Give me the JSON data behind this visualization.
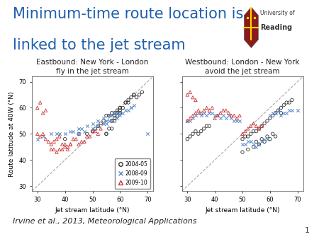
{
  "title_line1": "Minimum-time route location is",
  "title_line2": "linked to the jet stream",
  "title_color": "#1F5FAD",
  "title_fontsize": 15,
  "left_subtitle": "Eastbound: New York - London\nfly in the jet stream",
  "right_subtitle": "Westbound: London - New York\navoid the jet stream",
  "subtitle_fontsize": 7.5,
  "xlabel": "Jet stream latitude (°N)",
  "ylabel": "Route latitude at 40W (°N)",
  "axis_label_fontsize": 6.5,
  "xlim": [
    28,
    72
  ],
  "ylim": [
    28,
    72
  ],
  "xticks": [
    30,
    40,
    50,
    60,
    70
  ],
  "yticks": [
    30,
    40,
    50,
    60,
    70
  ],
  "tick_fontsize": 6,
  "citation": "Irvine et al., 2013, Meteorological Applications",
  "citation_fontsize": 8,
  "page_num": "1",
  "legend_labels": [
    "2004-05",
    "2008-09",
    "2009-10"
  ],
  "colors": {
    "black": "#333333",
    "blue": "#5588CC",
    "red": "#CC3333"
  },
  "marker_size": 10,
  "eastbound": {
    "black_x": [
      55,
      57,
      58,
      58,
      59,
      60,
      60,
      61,
      62,
      63,
      65,
      66,
      67,
      68,
      57,
      58,
      59,
      60,
      55,
      56,
      57,
      58,
      40,
      45,
      48,
      50,
      51,
      52,
      53,
      54,
      55,
      56,
      57,
      58,
      59,
      60,
      62,
      63,
      64,
      65
    ],
    "black_y": [
      50,
      55,
      57,
      57,
      58,
      59,
      60,
      60,
      62,
      62,
      65,
      64,
      65,
      66,
      52,
      55,
      57,
      58,
      50,
      52,
      55,
      56,
      48,
      50,
      50,
      51,
      52,
      53,
      54,
      55,
      57,
      57,
      58,
      58,
      59,
      60,
      62,
      63,
      64,
      65
    ],
    "blue_x": [
      30,
      32,
      35,
      37,
      38,
      40,
      42,
      43,
      45,
      46,
      48,
      50,
      52,
      54,
      55,
      56,
      57,
      58,
      59,
      60,
      62,
      64,
      65,
      70,
      55,
      57,
      59,
      60,
      61,
      63,
      64,
      45,
      47,
      50,
      52,
      54,
      56
    ],
    "blue_y": [
      48,
      49,
      50,
      50,
      50,
      50,
      51,
      51,
      52,
      52,
      53,
      54,
      55,
      56,
      55,
      57,
      57,
      58,
      58,
      58,
      59,
      60,
      61,
      50,
      54,
      55,
      56,
      57,
      58,
      59,
      60,
      50,
      51,
      52,
      53,
      54,
      55
    ],
    "red_x": [
      30,
      31,
      32,
      33,
      34,
      35,
      36,
      37,
      38,
      39,
      40,
      41,
      42,
      43,
      44,
      45,
      46,
      47,
      48,
      49,
      50,
      51,
      52,
      53,
      35,
      36,
      37,
      38,
      39,
      40,
      41,
      42,
      30,
      31,
      32,
      33
    ],
    "red_y": [
      50,
      49,
      50,
      48,
      47,
      46,
      47,
      48,
      49,
      46,
      46,
      45,
      46,
      48,
      48,
      46,
      47,
      47,
      49,
      49,
      51,
      51,
      50,
      52,
      44,
      44,
      43,
      44,
      44,
      45,
      44,
      46,
      60,
      62,
      58,
      59
    ]
  },
  "westbound": {
    "black_x": [
      30,
      31,
      32,
      33,
      34,
      35,
      36,
      37,
      38,
      50,
      51,
      52,
      53,
      54,
      55,
      56,
      57,
      58,
      59,
      60,
      61,
      62,
      63,
      64,
      65,
      66,
      67,
      68,
      50,
      52,
      54,
      56,
      58,
      60,
      62,
      64,
      55,
      57,
      59,
      61
    ],
    "black_y": [
      48,
      49,
      50,
      51,
      50,
      51,
      52,
      53,
      53,
      48,
      49,
      49,
      50,
      51,
      51,
      52,
      53,
      54,
      55,
      56,
      57,
      58,
      59,
      60,
      61,
      62,
      62,
      63,
      43,
      44,
      45,
      46,
      47,
      48,
      49,
      58,
      47,
      48,
      49,
      50
    ],
    "blue_x": [
      30,
      31,
      32,
      33,
      34,
      35,
      36,
      37,
      38,
      39,
      40,
      41,
      42,
      43,
      44,
      45,
      46,
      47,
      48,
      49,
      50,
      51,
      52,
      53,
      54,
      55,
      56,
      57,
      58,
      59,
      60,
      61,
      62,
      63,
      64,
      65,
      66,
      67,
      68,
      70
    ],
    "blue_y": [
      55,
      55,
      56,
      57,
      58,
      57,
      58,
      57,
      58,
      58,
      57,
      57,
      56,
      57,
      56,
      57,
      56,
      55,
      55,
      55,
      46,
      46,
      47,
      47,
      46,
      45,
      46,
      47,
      48,
      48,
      57,
      58,
      58,
      59,
      57,
      58,
      58,
      59,
      59,
      59
    ],
    "red_x": [
      30,
      31,
      32,
      33,
      34,
      35,
      36,
      37,
      38,
      39,
      40,
      41,
      42,
      43,
      44,
      45,
      46,
      47,
      48,
      49,
      50,
      51,
      52,
      53,
      54,
      55,
      56,
      57,
      30,
      31,
      32,
      33
    ],
    "red_y": [
      55,
      56,
      57,
      58,
      59,
      58,
      59,
      60,
      59,
      60,
      56,
      57,
      58,
      59,
      59,
      58,
      57,
      57,
      56,
      57,
      50,
      51,
      52,
      53,
      54,
      53,
      52,
      53,
      65,
      66,
      64,
      63
    ]
  }
}
